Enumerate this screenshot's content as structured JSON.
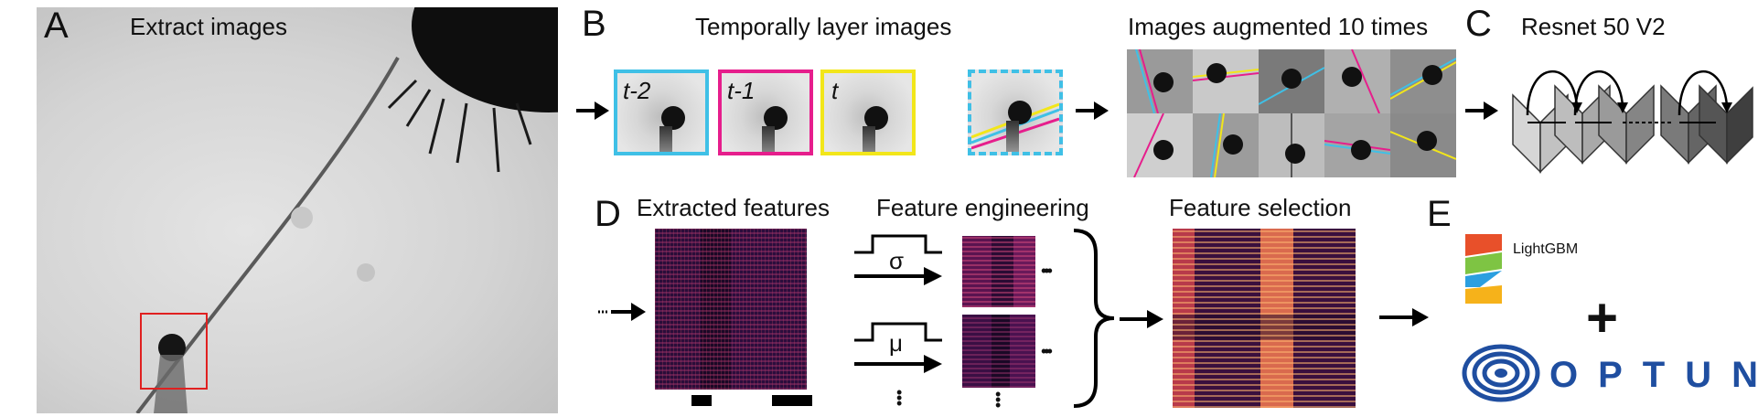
{
  "panels": {
    "a": {
      "letter": "A",
      "title": "Extract images"
    },
    "b": {
      "letter": "B",
      "title": "Temporally layer images",
      "frames": [
        {
          "label": "t-2",
          "color": "#3fc0e6"
        },
        {
          "label": "t-1",
          "color": "#e61e8c"
        },
        {
          "label": "t",
          "color": "#f2e61a"
        }
      ],
      "augment_title": "Images augmented 10 times"
    },
    "c": {
      "letter": "C",
      "title": "Resnet 50 V2"
    },
    "d": {
      "letter": "D",
      "extracted_title": "Extracted features",
      "engineering_title": "Feature engineering",
      "selection_title": "Feature selection",
      "sigma_symbol": "σ",
      "mu_symbol": "μ"
    },
    "e": {
      "letter": "E",
      "lightgbm_text": "LightGBM",
      "plus_text": "+",
      "optuna_text": "OPTUNA"
    }
  },
  "colors": {
    "cyan": "#3fc0e6",
    "magenta": "#e61e8c",
    "yellow": "#f2e61a",
    "highlight_box": "#e02020",
    "optuna_blue": "#1f4ea0"
  }
}
